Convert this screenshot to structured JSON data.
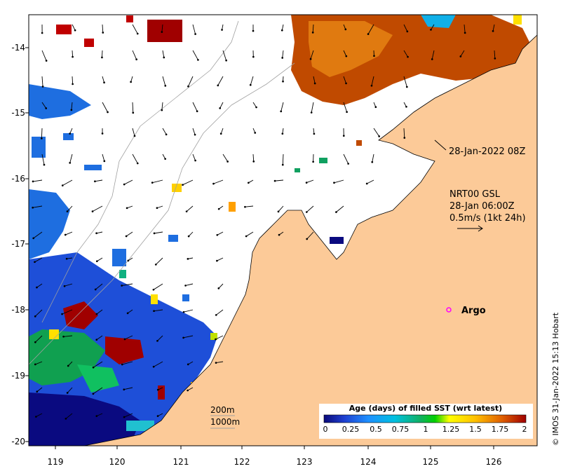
{
  "map": {
    "lon_ticks": [
      "119",
      "120",
      "121",
      "122",
      "123",
      "124",
      "125",
      "126"
    ],
    "lat_ticks": [
      "-14",
      "-15",
      "-16",
      "-17",
      "-18",
      "-19",
      "-20"
    ],
    "land_color": "#fcca98",
    "sea_color": "#ffffff",
    "coast_color": "#000000"
  },
  "annotations": {
    "timestamp": "28-Jan-2022 08Z",
    "current_model": "NRT00 GSL",
    "current_time": "28-Jan 06:00Z",
    "current_scale": "0.5m/s (1kt 24h)",
    "argo_label": "Argo",
    "isobath_200": "200m",
    "isobath_1000": "1000m",
    "credit": "© IMOS 31-Jan-2022 15:13 Hobart"
  },
  "colorbar": {
    "title": "Age (days) of filled SST (wrt latest)",
    "ticks": [
      "0",
      "0.25",
      "0.5",
      "0.75",
      "1",
      "1.25",
      "1.5",
      "1.75",
      "2"
    ],
    "colors": [
      "#0a0a7a",
      "#1e3fd0",
      "#1e90ff",
      "#00c0e0",
      "#10b060",
      "#00d000",
      "#a0e000",
      "#ffff00",
      "#ffc000",
      "#ff8000",
      "#e04000",
      "#a00000"
    ]
  }
}
